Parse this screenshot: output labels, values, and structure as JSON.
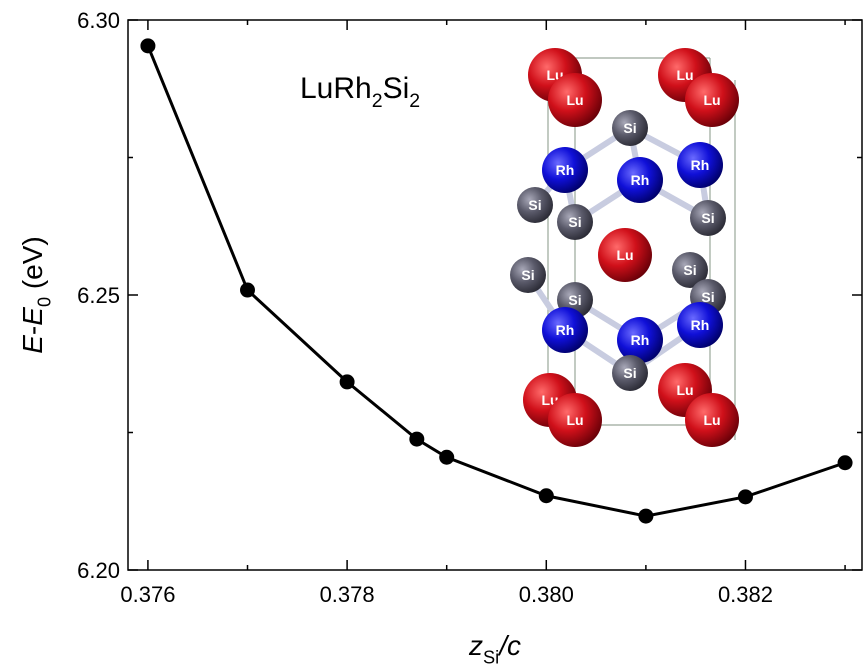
{
  "chart_data": {
    "type": "line",
    "annotation": [
      {
        "text": "LuRh"
      },
      {
        "text": "2",
        "sub": true
      },
      {
        "text": "Si"
      },
      {
        "text": "2",
        "sub": true
      }
    ],
    "xlabel": [
      {
        "text": "z",
        "italic": true
      },
      {
        "text": "Si",
        "sub": true
      },
      {
        "text": "/c",
        "italic": true
      }
    ],
    "ylabel": [
      {
        "text": "E",
        "italic": true
      },
      {
        "text": "-"
      },
      {
        "text": "E",
        "italic": true
      },
      {
        "text": "0",
        "sub": true
      },
      {
        "text": " (eV)"
      }
    ],
    "x": [
      0.376,
      0.377,
      0.378,
      0.3787,
      0.379,
      0.38,
      0.381,
      0.382,
      0.383
    ],
    "values": [
      6.2953,
      6.2509,
      6.2342,
      6.2238,
      6.2205,
      6.2135,
      6.2098,
      6.2133,
      6.2195
    ],
    "color": "#000000",
    "xlim": [
      0.3758,
      0.38317
    ],
    "ylim": [
      6.2,
      6.3
    ],
    "xticks": [
      0.376,
      0.378,
      {
        "value": 0.38,
        "label": "0.380"
      },
      0.382
    ],
    "xminorticks": [
      0.377,
      0.379,
      0.381,
      0.383
    ],
    "yticks": [
      {
        "value": 6.2,
        "label": "6.20"
      },
      6.25,
      {
        "value": 6.3,
        "label": "6.30"
      }
    ],
    "yminorticks": [
      6.225,
      6.275
    ],
    "inset_atoms": [
      "Lu",
      "Lu",
      "Lu",
      "Lu",
      "Si",
      "Rh",
      "Rh",
      "Rh",
      "Si",
      "Si",
      "Si",
      "Lu",
      "Si",
      "Si",
      "Si",
      "Si",
      "Rh",
      "Rh",
      "Rh",
      "Si",
      "Lu",
      "Lu",
      "Lu",
      "Lu"
    ]
  }
}
